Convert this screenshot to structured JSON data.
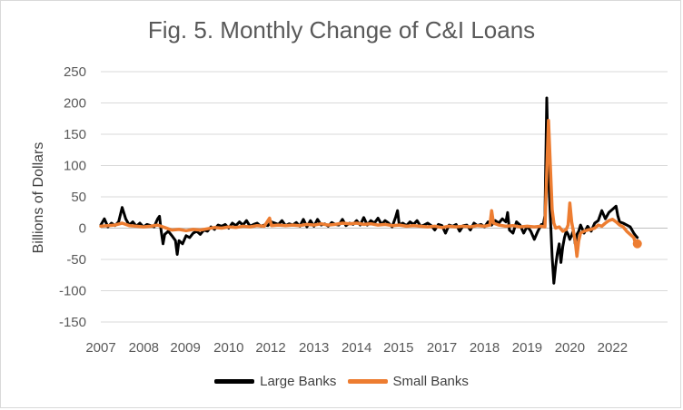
{
  "chart_data": {
    "type": "line",
    "title": "Fig. 5. Monthly Change of C&I Loans",
    "ylabel": "Billions of Dollars",
    "xlabel": "",
    "ylim": [
      -150,
      250
    ],
    "yticks": [
      250,
      200,
      150,
      100,
      50,
      0,
      -50,
      -100,
      -150
    ],
    "xlim": [
      2007.0,
      2022.95
    ],
    "xtick_labels": [
      "2007",
      "2008",
      "2009",
      "2010",
      "2012",
      "2013",
      "2014",
      "2015",
      "2017",
      "2018",
      "2019",
      "2020",
      "2022"
    ],
    "xtick_positions": [
      2007.0,
      2008.21,
      2009.38,
      2010.6,
      2011.78,
      2013.0,
      2014.2,
      2015.38,
      2016.6,
      2017.8,
      2019.0,
      2020.2,
      2021.4
    ],
    "legend": "bottom",
    "grid": "horizontal",
    "series": [
      {
        "name": "Large Banks",
        "color": "#000000",
        "points": [
          [
            2007.0,
            5
          ],
          [
            2007.1,
            15
          ],
          [
            2007.2,
            2
          ],
          [
            2007.3,
            8
          ],
          [
            2007.4,
            4
          ],
          [
            2007.5,
            10
          ],
          [
            2007.6,
            33
          ],
          [
            2007.7,
            15
          ],
          [
            2007.8,
            5
          ],
          [
            2007.9,
            10
          ],
          [
            2008.0,
            3
          ],
          [
            2008.1,
            8
          ],
          [
            2008.2,
            2
          ],
          [
            2008.3,
            6
          ],
          [
            2008.4,
            4
          ],
          [
            2008.5,
            2
          ],
          [
            2008.6,
            15
          ],
          [
            2008.65,
            19
          ],
          [
            2008.7,
            -5
          ],
          [
            2008.75,
            -25
          ],
          [
            2008.8,
            -10
          ],
          [
            2008.9,
            -5
          ],
          [
            2009.0,
            -12
          ],
          [
            2009.1,
            -20
          ],
          [
            2009.15,
            -42
          ],
          [
            2009.2,
            -20
          ],
          [
            2009.3,
            -25
          ],
          [
            2009.4,
            -12
          ],
          [
            2009.5,
            -15
          ],
          [
            2009.6,
            -8
          ],
          [
            2009.7,
            -5
          ],
          [
            2009.8,
            -10
          ],
          [
            2009.9,
            -3
          ],
          [
            2010.0,
            -5
          ],
          [
            2010.1,
            2
          ],
          [
            2010.2,
            -2
          ],
          [
            2010.3,
            5
          ],
          [
            2010.4,
            3
          ],
          [
            2010.5,
            6
          ],
          [
            2010.6,
            0
          ],
          [
            2010.7,
            8
          ],
          [
            2010.8,
            4
          ],
          [
            2010.9,
            10
          ],
          [
            2011.0,
            5
          ],
          [
            2011.1,
            12
          ],
          [
            2011.2,
            3
          ],
          [
            2011.3,
            6
          ],
          [
            2011.4,
            8
          ],
          [
            2011.5,
            3
          ],
          [
            2011.6,
            5
          ],
          [
            2011.7,
            4
          ],
          [
            2011.8,
            10
          ],
          [
            2011.9,
            8
          ],
          [
            2012.0,
            6
          ],
          [
            2012.1,
            12
          ],
          [
            2012.2,
            4
          ],
          [
            2012.3,
            7
          ],
          [
            2012.4,
            5
          ],
          [
            2012.5,
            9
          ],
          [
            2012.6,
            3
          ],
          [
            2012.7,
            14
          ],
          [
            2012.8,
            2
          ],
          [
            2012.9,
            12
          ],
          [
            2013.0,
            3
          ],
          [
            2013.1,
            14
          ],
          [
            2013.2,
            5
          ],
          [
            2013.3,
            7
          ],
          [
            2013.4,
            3
          ],
          [
            2013.5,
            9
          ],
          [
            2013.6,
            6
          ],
          [
            2013.7,
            5
          ],
          [
            2013.8,
            14
          ],
          [
            2013.9,
            4
          ],
          [
            2014.0,
            8
          ],
          [
            2014.1,
            6
          ],
          [
            2014.2,
            12
          ],
          [
            2014.3,
            5
          ],
          [
            2014.4,
            17
          ],
          [
            2014.5,
            5
          ],
          [
            2014.6,
            12
          ],
          [
            2014.7,
            8
          ],
          [
            2014.8,
            16
          ],
          [
            2014.9,
            6
          ],
          [
            2015.0,
            12
          ],
          [
            2015.1,
            8
          ],
          [
            2015.2,
            2
          ],
          [
            2015.3,
            18
          ],
          [
            2015.35,
            28
          ],
          [
            2015.4,
            5
          ],
          [
            2015.5,
            8
          ],
          [
            2015.6,
            4
          ],
          [
            2015.7,
            10
          ],
          [
            2015.8,
            6
          ],
          [
            2015.9,
            12
          ],
          [
            2016.0,
            3
          ],
          [
            2016.1,
            5
          ],
          [
            2016.2,
            8
          ],
          [
            2016.3,
            4
          ],
          [
            2016.4,
            -3
          ],
          [
            2016.5,
            6
          ],
          [
            2016.6,
            4
          ],
          [
            2016.7,
            -8
          ],
          [
            2016.8,
            5
          ],
          [
            2016.9,
            3
          ],
          [
            2017.0,
            6
          ],
          [
            2017.1,
            -5
          ],
          [
            2017.2,
            4
          ],
          [
            2017.3,
            5
          ],
          [
            2017.4,
            -3
          ],
          [
            2017.5,
            8
          ],
          [
            2017.6,
            4
          ],
          [
            2017.7,
            6
          ],
          [
            2017.8,
            2
          ],
          [
            2017.9,
            10
          ],
          [
            2018.0,
            5
          ],
          [
            2018.1,
            12
          ],
          [
            2018.2,
            8
          ],
          [
            2018.3,
            15
          ],
          [
            2018.4,
            10
          ],
          [
            2018.45,
            25
          ],
          [
            2018.5,
            -3
          ],
          [
            2018.6,
            -8
          ],
          [
            2018.7,
            10
          ],
          [
            2018.8,
            5
          ],
          [
            2018.9,
            -8
          ],
          [
            2019.0,
            3
          ],
          [
            2019.1,
            -5
          ],
          [
            2019.2,
            -18
          ],
          [
            2019.3,
            -5
          ],
          [
            2019.4,
            6
          ],
          [
            2019.45,
            5
          ],
          [
            2019.5,
            20
          ],
          [
            2019.55,
            208
          ],
          [
            2019.6,
            85
          ],
          [
            2019.65,
            20
          ],
          [
            2019.7,
            -45
          ],
          [
            2019.75,
            -88
          ],
          [
            2019.8,
            -60
          ],
          [
            2019.85,
            -40
          ],
          [
            2019.9,
            -25
          ],
          [
            2019.95,
            -55
          ],
          [
            2020.0,
            -30
          ],
          [
            2020.05,
            -15
          ],
          [
            2020.1,
            -5
          ],
          [
            2020.15,
            -10
          ],
          [
            2020.2,
            -18
          ],
          [
            2020.25,
            -12
          ],
          [
            2020.3,
            -3
          ],
          [
            2020.35,
            -25
          ],
          [
            2020.4,
            -10
          ],
          [
            2020.45,
            -5
          ],
          [
            2020.5,
            5
          ],
          [
            2020.6,
            -8
          ],
          [
            2020.7,
            3
          ],
          [
            2020.8,
            -5
          ],
          [
            2020.9,
            8
          ],
          [
            2021.0,
            12
          ],
          [
            2021.1,
            28
          ],
          [
            2021.2,
            15
          ],
          [
            2021.3,
            25
          ],
          [
            2021.4,
            30
          ],
          [
            2021.5,
            35
          ],
          [
            2021.55,
            20
          ],
          [
            2021.6,
            10
          ],
          [
            2021.7,
            8
          ],
          [
            2021.8,
            5
          ],
          [
            2021.9,
            2
          ],
          [
            2022.0,
            -8
          ],
          [
            2022.05,
            -12
          ],
          [
            2022.1,
            -15
          ]
        ]
      },
      {
        "name": "Small Banks",
        "color": "#ED7D31",
        "points": [
          [
            2007.0,
            3
          ],
          [
            2007.2,
            4
          ],
          [
            2007.4,
            5
          ],
          [
            2007.6,
            8
          ],
          [
            2007.8,
            4
          ],
          [
            2008.0,
            3
          ],
          [
            2008.2,
            2
          ],
          [
            2008.4,
            3
          ],
          [
            2008.6,
            5
          ],
          [
            2008.8,
            1
          ],
          [
            2009.0,
            -3
          ],
          [
            2009.2,
            -2
          ],
          [
            2009.4,
            -4
          ],
          [
            2009.6,
            -2
          ],
          [
            2009.8,
            -3
          ],
          [
            2010.0,
            -1
          ],
          [
            2010.2,
            1
          ],
          [
            2010.4,
            0
          ],
          [
            2010.6,
            2
          ],
          [
            2010.8,
            1
          ],
          [
            2011.0,
            3
          ],
          [
            2011.2,
            2
          ],
          [
            2011.4,
            4
          ],
          [
            2011.6,
            3
          ],
          [
            2011.75,
            16
          ],
          [
            2011.8,
            4
          ],
          [
            2012.0,
            5
          ],
          [
            2012.2,
            4
          ],
          [
            2012.4,
            5
          ],
          [
            2012.6,
            4
          ],
          [
            2012.8,
            6
          ],
          [
            2013.0,
            5
          ],
          [
            2013.2,
            7
          ],
          [
            2013.4,
            5
          ],
          [
            2013.6,
            6
          ],
          [
            2013.8,
            8
          ],
          [
            2014.0,
            7
          ],
          [
            2014.2,
            8
          ],
          [
            2014.4,
            6
          ],
          [
            2014.6,
            7
          ],
          [
            2014.8,
            5
          ],
          [
            2015.0,
            6
          ],
          [
            2015.2,
            4
          ],
          [
            2015.4,
            5
          ],
          [
            2015.6,
            3
          ],
          [
            2015.8,
            4
          ],
          [
            2016.0,
            3
          ],
          [
            2016.2,
            2
          ],
          [
            2016.4,
            3
          ],
          [
            2016.6,
            1
          ],
          [
            2016.8,
            3
          ],
          [
            2017.0,
            2
          ],
          [
            2017.2,
            3
          ],
          [
            2017.4,
            2
          ],
          [
            2017.6,
            4
          ],
          [
            2017.8,
            3
          ],
          [
            2017.95,
            5
          ],
          [
            2018.0,
            28
          ],
          [
            2018.05,
            8
          ],
          [
            2018.2,
            5
          ],
          [
            2018.4,
            3
          ],
          [
            2018.6,
            4
          ],
          [
            2018.8,
            2
          ],
          [
            2019.0,
            3
          ],
          [
            2019.2,
            2
          ],
          [
            2019.4,
            3
          ],
          [
            2019.5,
            2
          ],
          [
            2019.6,
            172
          ],
          [
            2019.65,
            100
          ],
          [
            2019.7,
            30
          ],
          [
            2019.75,
            8
          ],
          [
            2019.8,
            0
          ],
          [
            2019.9,
            2
          ],
          [
            2020.0,
            -5
          ],
          [
            2020.1,
            -2
          ],
          [
            2020.15,
            5
          ],
          [
            2020.2,
            40
          ],
          [
            2020.25,
            10
          ],
          [
            2020.3,
            -5
          ],
          [
            2020.35,
            -20
          ],
          [
            2020.4,
            -45
          ],
          [
            2020.45,
            -20
          ],
          [
            2020.5,
            -8
          ],
          [
            2020.6,
            -5
          ],
          [
            2020.7,
            -3
          ],
          [
            2020.8,
            -2
          ],
          [
            2020.9,
            0
          ],
          [
            2021.0,
            5
          ],
          [
            2021.1,
            3
          ],
          [
            2021.2,
            8
          ],
          [
            2021.3,
            12
          ],
          [
            2021.4,
            14
          ],
          [
            2021.5,
            10
          ],
          [
            2021.6,
            5
          ],
          [
            2021.7,
            2
          ],
          [
            2021.8,
            -5
          ],
          [
            2021.9,
            -10
          ],
          [
            2022.0,
            -15
          ],
          [
            2022.05,
            -25
          ],
          [
            2022.1,
            -25
          ]
        ]
      }
    ]
  }
}
